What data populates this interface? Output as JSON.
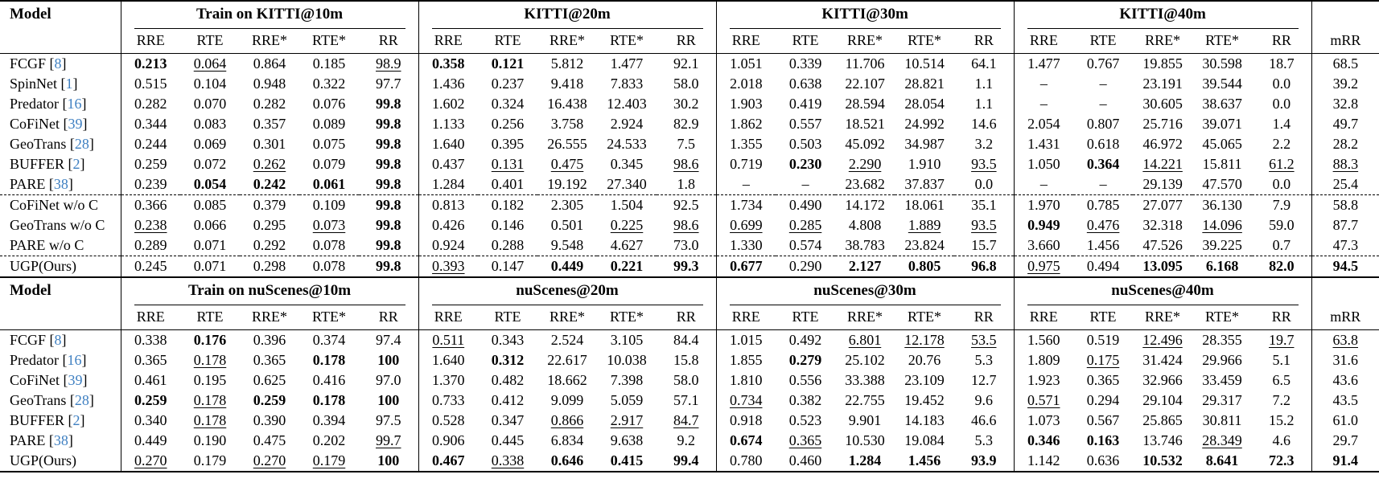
{
  "cite_color": "#3e7fc1",
  "cell_format_note": "cell prefix 'b:' = bold (best result), 'u:' = underlined (second best), no prefix = plain; '–' = no result",
  "tables": [
    {
      "name": "kitti",
      "model_header": "Model",
      "group_headers": [
        "Train on KITTI@10m",
        "KITTI@20m",
        "KITTI@30m",
        "KITTI@40m"
      ],
      "sub_headers": [
        "RRE",
        "RTE",
        "RRE*",
        "RTE*",
        "RR"
      ],
      "mrr_header": "mRR",
      "rows": [
        {
          "model": "FCGF",
          "cite": "8",
          "dashed_above": false,
          "cells": [
            "b:0.213",
            "u:0.064",
            "0.864",
            "0.185",
            "u:98.9",
            "b:0.358",
            "b:0.121",
            "5.812",
            "1.477",
            "92.1",
            "1.051",
            "0.339",
            "11.706",
            "10.514",
            "64.1",
            "1.477",
            "0.767",
            "19.855",
            "30.598",
            "18.7"
          ],
          "mrr": "68.5"
        },
        {
          "model": "SpinNet",
          "cite": "1",
          "dashed_above": false,
          "cells": [
            "0.515",
            "0.104",
            "0.948",
            "0.322",
            "97.7",
            "1.436",
            "0.237",
            "9.418",
            "7.833",
            "58.0",
            "2.018",
            "0.638",
            "22.107",
            "28.821",
            "1.1",
            "–",
            "–",
            "23.191",
            "39.544",
            "0.0"
          ],
          "mrr": "39.2"
        },
        {
          "model": "Predator",
          "cite": "16",
          "dashed_above": false,
          "cells": [
            "0.282",
            "0.070",
            "0.282",
            "0.076",
            "b:99.8",
            "1.602",
            "0.324",
            "16.438",
            "12.403",
            "30.2",
            "1.903",
            "0.419",
            "28.594",
            "28.054",
            "1.1",
            "–",
            "–",
            "30.605",
            "38.637",
            "0.0"
          ],
          "mrr": "32.8"
        },
        {
          "model": "CoFiNet",
          "cite": "39",
          "dashed_above": false,
          "cells": [
            "0.344",
            "0.083",
            "0.357",
            "0.089",
            "b:99.8",
            "1.133",
            "0.256",
            "3.758",
            "2.924",
            "82.9",
            "1.862",
            "0.557",
            "18.521",
            "24.992",
            "14.6",
            "2.054",
            "0.807",
            "25.716",
            "39.071",
            "1.4"
          ],
          "mrr": "49.7"
        },
        {
          "model": "GeoTrans",
          "cite": "28",
          "dashed_above": false,
          "cells": [
            "0.244",
            "0.069",
            "0.301",
            "0.075",
            "b:99.8",
            "1.640",
            "0.395",
            "26.555",
            "24.533",
            "7.5",
            "1.355",
            "0.503",
            "45.092",
            "34.987",
            "3.2",
            "1.431",
            "0.618",
            "46.972",
            "45.065",
            "2.2"
          ],
          "mrr": "28.2"
        },
        {
          "model": "BUFFER",
          "cite": "2",
          "dashed_above": false,
          "cells": [
            "0.259",
            "0.072",
            "u:0.262",
            "0.079",
            "b:99.8",
            "0.437",
            "u:0.131",
            "u:0.475",
            "0.345",
            "u:98.6",
            "0.719",
            "b:0.230",
            "u:2.290",
            "1.910",
            "u:93.5",
            "1.050",
            "b:0.364",
            "u:14.221",
            "15.811",
            "u:61.2"
          ],
          "mrr": "u:88.3"
        },
        {
          "model": "PARE",
          "cite": "38",
          "dashed_above": false,
          "cells": [
            "0.239",
            "b:0.054",
            "b:0.242",
            "b:0.061",
            "b:99.8",
            "1.284",
            "0.401",
            "19.192",
            "27.340",
            "1.8",
            "–",
            "–",
            "23.682",
            "37.837",
            "0.0",
            "–",
            "–",
            "29.139",
            "47.570",
            "0.0"
          ],
          "mrr": "25.4"
        },
        {
          "model": "CoFiNet w/o C",
          "cite": null,
          "dashed_above": true,
          "cells": [
            "0.366",
            "0.085",
            "0.379",
            "0.109",
            "b:99.8",
            "0.813",
            "0.182",
            "2.305",
            "1.504",
            "92.5",
            "1.734",
            "0.490",
            "14.172",
            "18.061",
            "35.1",
            "1.970",
            "0.785",
            "27.077",
            "36.130",
            "7.9"
          ],
          "mrr": "58.8"
        },
        {
          "model": "GeoTrans w/o C",
          "cite": null,
          "dashed_above": false,
          "cells": [
            "u:0.238",
            "0.066",
            "0.295",
            "u:0.073",
            "b:99.8",
            "0.426",
            "0.146",
            "0.501",
            "u:0.225",
            "u:98.6",
            "u:0.699",
            "u:0.285",
            "4.808",
            "u:1.889",
            "u:93.5",
            "b:0.949",
            "u:0.476",
            "32.318",
            "u:14.096",
            "59.0"
          ],
          "mrr": "87.7"
        },
        {
          "model": "PARE w/o C",
          "cite": null,
          "dashed_above": false,
          "cells": [
            "0.289",
            "0.071",
            "0.292",
            "0.078",
            "b:99.8",
            "0.924",
            "0.288",
            "9.548",
            "4.627",
            "73.0",
            "1.330",
            "0.574",
            "38.783",
            "23.824",
            "15.7",
            "3.660",
            "1.456",
            "47.526",
            "39.225",
            "0.7"
          ],
          "mrr": "47.3"
        },
        {
          "model": "UGP(Ours)",
          "cite": null,
          "dashed_above": true,
          "cells": [
            "0.245",
            "0.071",
            "0.298",
            "0.078",
            "b:99.8",
            "u:0.393",
            "0.147",
            "b:0.449",
            "b:0.221",
            "b:99.3",
            "b:0.677",
            "0.290",
            "b:2.127",
            "b:0.805",
            "b:96.8",
            "u:0.975",
            "0.494",
            "b:13.095",
            "b:6.168",
            "b:82.0"
          ],
          "mrr": "b:94.5"
        }
      ]
    },
    {
      "name": "nuscenes",
      "model_header": "Model",
      "group_headers": [
        "Train on nuScenes@10m",
        "nuScenes@20m",
        "nuScenes@30m",
        "nuScenes@40m"
      ],
      "sub_headers": [
        "RRE",
        "RTE",
        "RRE*",
        "RTE*",
        "RR"
      ],
      "mrr_header": "mRR",
      "rows": [
        {
          "model": "FCGF",
          "cite": "8",
          "dashed_above": false,
          "cells": [
            "0.338",
            "b:0.176",
            "0.396",
            "0.374",
            "97.4",
            "u:0.511",
            "0.343",
            "2.524",
            "3.105",
            "84.4",
            "1.015",
            "0.492",
            "u:6.801",
            "u:12.178",
            "u:53.5",
            "1.560",
            "0.519",
            "u:12.496",
            "28.355",
            "u:19.7"
          ],
          "mrr": "u:63.8"
        },
        {
          "model": "Predator",
          "cite": "16",
          "dashed_above": false,
          "cells": [
            "0.365",
            "u:0.178",
            "0.365",
            "b:0.178",
            "b:100",
            "1.640",
            "b:0.312",
            "22.617",
            "10.038",
            "15.8",
            "1.855",
            "b:0.279",
            "25.102",
            "20.76",
            "5.3",
            "1.809",
            "u:0.175",
            "31.424",
            "29.966",
            "5.1"
          ],
          "mrr": "31.6"
        },
        {
          "model": "CoFiNet",
          "cite": "39",
          "dashed_above": false,
          "cells": [
            "0.461",
            "0.195",
            "0.625",
            "0.416",
            "97.0",
            "1.370",
            "0.482",
            "18.662",
            "7.398",
            "58.0",
            "1.810",
            "0.556",
            "33.388",
            "23.109",
            "12.7",
            "1.923",
            "0.365",
            "32.966",
            "33.459",
            "6.5"
          ],
          "mrr": "43.6"
        },
        {
          "model": "GeoTrans",
          "cite": "28",
          "dashed_above": false,
          "cells": [
            "b:0.259",
            "u:0.178",
            "b:0.259",
            "b:0.178",
            "b:100",
            "0.733",
            "0.412",
            "9.099",
            "5.059",
            "57.1",
            "u:0.734",
            "0.382",
            "22.755",
            "19.452",
            "9.6",
            "u:0.571",
            "0.294",
            "29.104",
            "29.317",
            "7.2"
          ],
          "mrr": "43.5"
        },
        {
          "model": "BUFFER",
          "cite": "2",
          "dashed_above": false,
          "cells": [
            "0.340",
            "u:0.178",
            "0.390",
            "0.394",
            "97.5",
            "0.528",
            "0.347",
            "u:0.866",
            "u:2.917",
            "u:84.7",
            "0.918",
            "0.523",
            "9.901",
            "14.183",
            "46.6",
            "1.073",
            "0.567",
            "25.865",
            "30.811",
            "15.2"
          ],
          "mrr": "61.0"
        },
        {
          "model": "PARE",
          "cite": "38",
          "dashed_above": false,
          "cells": [
            "0.449",
            "0.190",
            "0.475",
            "0.202",
            "u:99.7",
            "0.906",
            "0.445",
            "6.834",
            "9.638",
            "9.2",
            "b:0.674",
            "u:0.365",
            "10.530",
            "19.084",
            "5.3",
            "b:0.346",
            "b:0.163",
            "13.746",
            "u:28.349",
            "4.6"
          ],
          "mrr": "29.7"
        },
        {
          "model": "UGP(Ours)",
          "cite": null,
          "dashed_above": false,
          "cells": [
            "u:0.270",
            "0.179",
            "u:0.270",
            "u:0.179",
            "b:100",
            "b:0.467",
            "u:0.338",
            "b:0.646",
            "b:0.415",
            "b:99.4",
            "0.780",
            "0.460",
            "b:1.284",
            "b:1.456",
            "b:93.9",
            "1.142",
            "0.636",
            "b:10.532",
            "b:8.641",
            "b:72.3"
          ],
          "mrr": "b:91.4"
        }
      ]
    }
  ]
}
